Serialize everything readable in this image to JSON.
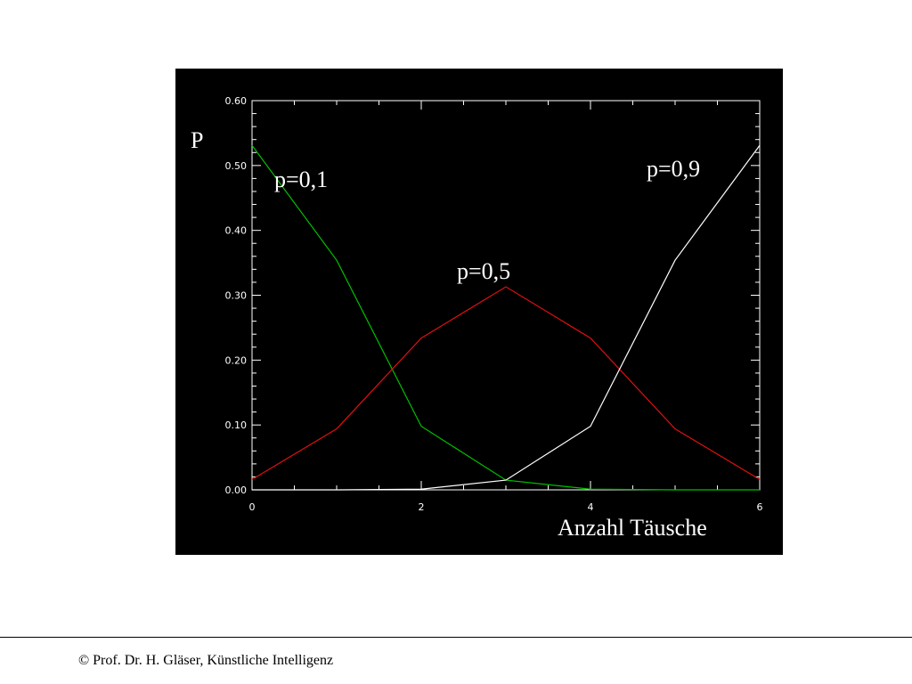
{
  "footer": {
    "text": "© Prof. Dr. H. Gläser, Künstliche Intelligenz"
  },
  "colors": {
    "panel_bg": "#000000",
    "axis": "#ffffff"
  },
  "chart_data": {
    "type": "line",
    "ylabel": "P",
    "xlabel": "Anzahl Täusche",
    "xlim": [
      0,
      6
    ],
    "ylim": [
      0,
      0.6
    ],
    "x_ticks": [
      0,
      2,
      4,
      6
    ],
    "y_ticks": [
      "0.00",
      "0.10",
      "0.20",
      "0.30",
      "0.40",
      "0.50",
      "0.60"
    ],
    "x": [
      0,
      1,
      2,
      3,
      4,
      5,
      6
    ],
    "series": [
      {
        "name": "p=0,1",
        "color": "#00c000",
        "values": [
          0.531,
          0.354,
          0.098,
          0.015,
          0.001,
          0.0,
          0.0
        ]
      },
      {
        "name": "p=0,5",
        "color": "#e01010",
        "values": [
          0.016,
          0.094,
          0.234,
          0.313,
          0.234,
          0.094,
          0.016
        ]
      },
      {
        "name": "p=0,9",
        "color": "#ffffff",
        "values": [
          0.0,
          0.0,
          0.001,
          0.015,
          0.098,
          0.354,
          0.531
        ]
      }
    ]
  }
}
